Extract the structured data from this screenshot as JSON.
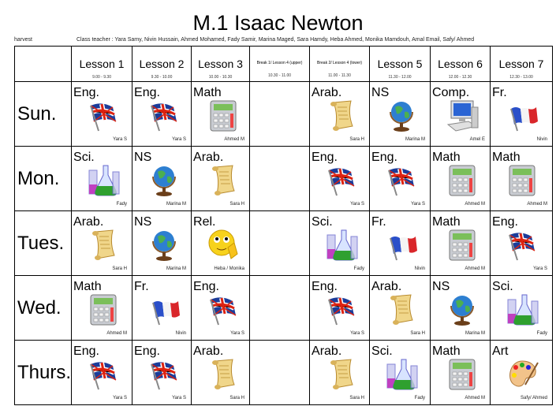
{
  "title": "M.1 Isaac Newton",
  "harvest": "harvest",
  "class_teacher": "Class teacher : Yara Samy, Nivin Hussain, Ahmed Mohamed, Fady Samir, Marina Maged, Sara Hamdy, Heba Ahmed, Monika Mamdouh, Amal Email, Safy/ Ahmed",
  "columns": [
    {
      "label": "Lesson 1",
      "time": "9.00 - 9.30",
      "small": false
    },
    {
      "label": "Lesson 2",
      "time": "9.30 - 10.00",
      "small": false
    },
    {
      "label": "Lesson 3",
      "time": "10.00 - 10.30",
      "small": false
    },
    {
      "label": "Break 1/ Lesson 4 (upper)",
      "time": "10.30 - 11.00",
      "small": true
    },
    {
      "label": "Break 2/ Lesson 4 (lower)",
      "time": "11.00 - 11.30",
      "small": true
    },
    {
      "label": "Lesson 5",
      "time": "11.30 - 12.00",
      "small": false
    },
    {
      "label": "Lesson 6",
      "time": "12.00 - 12.30",
      "small": false
    },
    {
      "label": "Lesson 7",
      "time": "12.30 - 13.00",
      "small": false
    }
  ],
  "rows": [
    {
      "day": "Sun.",
      "cells": [
        {
          "subject": "Eng.",
          "teacher": "Yara S",
          "icon": "uk-flag-icon"
        },
        {
          "subject": "Eng.",
          "teacher": "Yara S",
          "icon": "uk-flag-icon"
        },
        {
          "subject": "Math",
          "teacher": "Ahmed M",
          "icon": "calculator-icon"
        },
        null,
        {
          "subject": "Arab.",
          "teacher": "Sara H",
          "icon": "scroll-icon"
        },
        {
          "subject": "NS",
          "teacher": "Marina M",
          "icon": "globe-icon"
        },
        {
          "subject": "Comp.",
          "teacher": "Amel E",
          "icon": "computer-icon"
        },
        {
          "subject": "Fr.",
          "teacher": "Nivin",
          "icon": "france-flag-icon"
        }
      ]
    },
    {
      "day": "Mon.",
      "cells": [
        {
          "subject": "Sci.",
          "teacher": "Fady",
          "icon": "beaker-icon"
        },
        {
          "subject": "NS",
          "teacher": "Marina M",
          "icon": "globe-icon"
        },
        {
          "subject": "Arab.",
          "teacher": "Sara H",
          "icon": "scroll-icon"
        },
        null,
        {
          "subject": "Eng.",
          "teacher": "Yara S",
          "icon": "uk-flag-icon"
        },
        {
          "subject": "Eng.",
          "teacher": "Yara S",
          "icon": "uk-flag-icon"
        },
        {
          "subject": "Math",
          "teacher": "Ahmed M",
          "icon": "calculator-icon"
        },
        {
          "subject": "Math",
          "teacher": "Ahmed M",
          "icon": "calculator-icon"
        }
      ]
    },
    {
      "day": "Tues.",
      "cells": [
        {
          "subject": "Arab.",
          "teacher": "Sara H",
          "icon": "scroll-icon"
        },
        {
          "subject": "NS",
          "teacher": "Marina M",
          "icon": "globe-icon"
        },
        {
          "subject": "Rel.",
          "teacher": "Heba / Monika",
          "icon": "praying-smiley-icon"
        },
        null,
        {
          "subject": "Sci.",
          "teacher": "Fady",
          "icon": "beaker-icon"
        },
        {
          "subject": "Fr.",
          "teacher": "Nivin",
          "icon": "france-flag-icon"
        },
        {
          "subject": "Math",
          "teacher": "Ahmed M",
          "icon": "calculator-icon"
        },
        {
          "subject": "Eng.",
          "teacher": "Yara S",
          "icon": "uk-flag-icon"
        }
      ]
    },
    {
      "day": "Wed.",
      "cells": [
        {
          "subject": "Math",
          "teacher": "Ahmed M",
          "icon": "calculator-icon"
        },
        {
          "subject": "Fr.",
          "teacher": "Nivin",
          "icon": "france-flag-icon"
        },
        {
          "subject": "Eng.",
          "teacher": "Yara S",
          "icon": "uk-flag-icon"
        },
        null,
        {
          "subject": "Eng.",
          "teacher": "Yara S",
          "icon": "uk-flag-icon"
        },
        {
          "subject": "Arab.",
          "teacher": "Sara H",
          "icon": "scroll-icon"
        },
        {
          "subject": "NS",
          "teacher": "Marina M",
          "icon": "globe-icon"
        },
        {
          "subject": "Sci.",
          "teacher": "Fady",
          "icon": "beaker-icon"
        }
      ]
    },
    {
      "day": "Thurs.",
      "cells": [
        {
          "subject": "Eng.",
          "teacher": "Yara S",
          "icon": "uk-flag-icon"
        },
        {
          "subject": "Eng.",
          "teacher": "Yara S",
          "icon": "uk-flag-icon"
        },
        {
          "subject": "Arab.",
          "teacher": "Sara H",
          "icon": "scroll-icon"
        },
        null,
        {
          "subject": "Arab.",
          "teacher": "Sara H",
          "icon": "scroll-icon"
        },
        {
          "subject": "Sci.",
          "teacher": "Fady",
          "icon": "beaker-icon"
        },
        {
          "subject": "Math",
          "teacher": "Ahmed M",
          "icon": "calculator-icon"
        },
        {
          "subject": "Art",
          "teacher": "Safy/ Ahmed",
          "icon": "palette-icon"
        }
      ]
    }
  ]
}
